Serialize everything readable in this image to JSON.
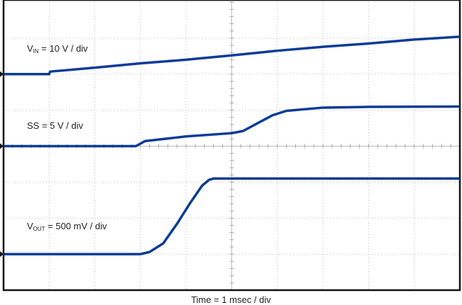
{
  "chart_data": {
    "type": "line",
    "xlabel": "Time = 1 msec / div",
    "x_unit": "ms",
    "xlim": [
      0,
      10
    ],
    "divisions": {
      "x": 10,
      "y": 8
    },
    "grid": true,
    "trace_color": "#0b3c96",
    "series": [
      {
        "name": "VIN",
        "label_main": "V",
        "label_sub": "IN",
        "label_rest": " = 10 V / div",
        "volts_per_div": 10,
        "ground_div_from_top": 2,
        "x": [
          0,
          1.0,
          1.02,
          2,
          3,
          4,
          5,
          6,
          7,
          8,
          9,
          10
        ],
        "y": [
          0,
          0,
          0.7,
          1.8,
          3.0,
          4.0,
          5.2,
          6.5,
          7.6,
          8.5,
          9.6,
          10.4
        ]
      },
      {
        "name": "SS",
        "label_main": "SS = 5 V / div",
        "label_sub": "",
        "label_rest": "",
        "volts_per_div": 5,
        "ground_div_from_top": 4,
        "x": [
          0,
          2.9,
          3.1,
          4,
          5,
          5.25,
          5.6,
          5.9,
          6.2,
          7,
          8,
          10
        ],
        "y": [
          0,
          0,
          0.7,
          1.35,
          1.8,
          2.1,
          3.3,
          4.3,
          4.9,
          5.35,
          5.45,
          5.5
        ]
      },
      {
        "name": "VOUT",
        "label_main": "V",
        "label_sub": "OUT",
        "label_rest": " = 500 mV / div",
        "volts_per_div": 0.5,
        "ground_div_from_top": 7,
        "x": [
          0,
          3.0,
          3.2,
          3.5,
          3.8,
          4.1,
          4.35,
          4.5,
          4.6,
          10
        ],
        "y": [
          0,
          0,
          0.03,
          0.15,
          0.42,
          0.72,
          0.95,
          1.03,
          1.05,
          1.05
        ]
      }
    ]
  }
}
